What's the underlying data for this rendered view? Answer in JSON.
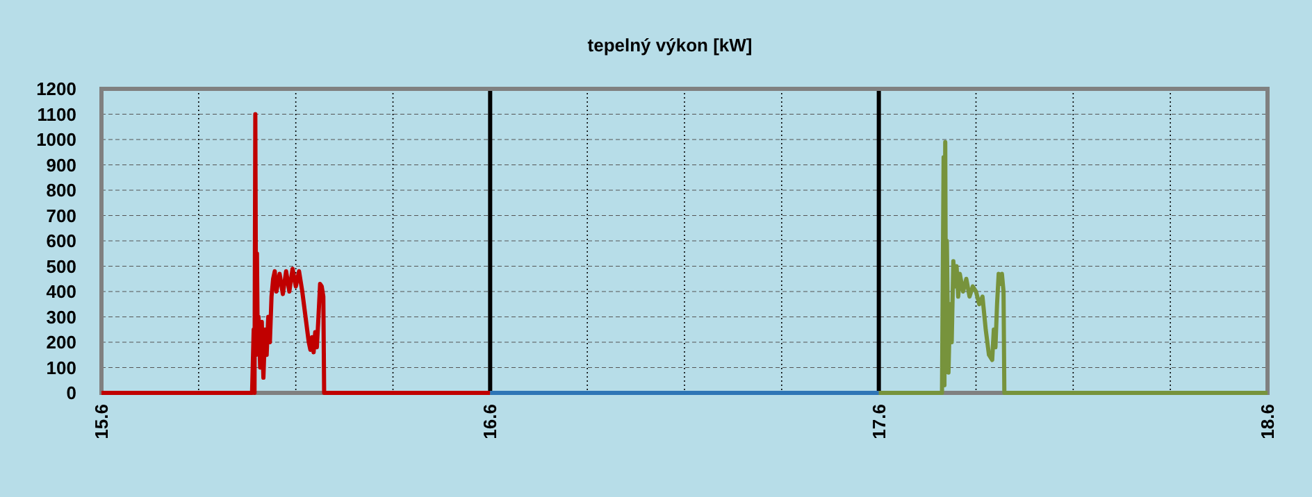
{
  "chart_data": {
    "type": "line",
    "title": "tepelný výkon [kW]",
    "xlim": [
      "--06-15",
      "--06-18"
    ],
    "ylim": [
      0,
      1200
    ],
    "xticks": [
      {
        "value": "--06-15",
        "label": "15.6"
      },
      {
        "value": "--06-15T06:00",
        "label": null
      },
      {
        "value": "--06-15T12:00",
        "label": null
      },
      {
        "value": "--06-15T18:00",
        "label": null
      },
      {
        "value": "--06-16",
        "label": "16.6"
      },
      {
        "value": "--06-16T06:00",
        "label": null
      },
      {
        "value": "--06-16T12:00",
        "label": null
      },
      {
        "value": "--06-16T18:00",
        "label": null
      },
      {
        "value": "--06-17",
        "label": "17.6"
      },
      {
        "value": "--06-17T06:00",
        "label": null
      },
      {
        "value": "--06-17T12:00",
        "label": null
      },
      {
        "value": "--06-17T18:00",
        "label": null
      },
      {
        "value": "--06-18",
        "label": "18.6"
      }
    ],
    "yticks": [
      0,
      100,
      200,
      300,
      400,
      500,
      600,
      700,
      800,
      900,
      1000,
      1100,
      1200
    ],
    "grid": true,
    "marker": "none",
    "line_style": "solid",
    "series": [
      {
        "color": "#c00000",
        "x": [
          "--06-15T00:00",
          "--06-15T09:18",
          "--06-15T09:24",
          "--06-15T09:27",
          "--06-15T09:30",
          "--06-15T09:33",
          "--06-15T09:36",
          "--06-15T09:39",
          "--06-15T09:42",
          "--06-15T09:48",
          "--06-15T09:54",
          "--06-15T10:00",
          "--06-15T10:06",
          "--06-15T10:12",
          "--06-15T10:18",
          "--06-15T10:24",
          "--06-15T10:30",
          "--06-15T10:36",
          "--06-15T10:42",
          "--06-15T10:48",
          "--06-15T11:00",
          "--06-15T11:12",
          "--06-15T11:24",
          "--06-15T11:36",
          "--06-15T11:48",
          "--06-15T12:00",
          "--06-15T12:12",
          "--06-15T12:24",
          "--06-15T12:36",
          "--06-15T12:48",
          "--06-15T12:54",
          "--06-15T13:00",
          "--06-15T13:06",
          "--06-15T13:12",
          "--06-15T13:18",
          "--06-15T13:24",
          "--06-15T13:30",
          "--06-15T13:36",
          "--06-15T13:42",
          "--06-15T13:45",
          "--06-16T00:00"
        ],
        "values": [
          0,
          0,
          250,
          0,
          1100,
          150,
          550,
          200,
          300,
          100,
          280,
          60,
          250,
          150,
          300,
          200,
          380,
          450,
          480,
          400,
          470,
          390,
          480,
          400,
          490,
          420,
          480,
          400,
          300,
          200,
          170,
          220,
          160,
          240,
          180,
          300,
          430,
          420,
          380,
          0,
          0
        ]
      },
      {
        "color": "#2e75b6",
        "x": [
          "--06-16T00:00",
          "--06-17T00:00"
        ],
        "values": [
          0,
          0
        ]
      },
      {
        "color": "#77933c",
        "x": [
          "--06-17T00:00",
          "--06-17T03:54",
          "--06-17T04:00",
          "--06-17T04:03",
          "--06-17T04:06",
          "--06-17T04:09",
          "--06-17T04:12",
          "--06-17T04:18",
          "--06-17T04:24",
          "--06-17T04:30",
          "--06-17T04:36",
          "--06-17T04:42",
          "--06-17T04:48",
          "--06-17T04:54",
          "--06-17T05:00",
          "--06-17T05:12",
          "--06-17T05:24",
          "--06-17T05:36",
          "--06-17T05:48",
          "--06-17T06:00",
          "--06-17T06:12",
          "--06-17T06:24",
          "--06-17T06:36",
          "--06-17T06:48",
          "--06-17T07:00",
          "--06-17T07:06",
          "--06-17T07:12",
          "--06-17T07:18",
          "--06-17T07:24",
          "--06-17T07:30",
          "--06-17T07:36",
          "--06-17T07:42",
          "--06-17T07:45",
          "--06-18T00:00"
        ],
        "values": [
          0,
          0,
          930,
          30,
          990,
          100,
          600,
          80,
          350,
          200,
          520,
          420,
          500,
          380,
          470,
          400,
          450,
          380,
          420,
          400,
          350,
          380,
          250,
          150,
          130,
          250,
          180,
          350,
          470,
          430,
          470,
          400,
          0,
          0
        ]
      }
    ]
  }
}
